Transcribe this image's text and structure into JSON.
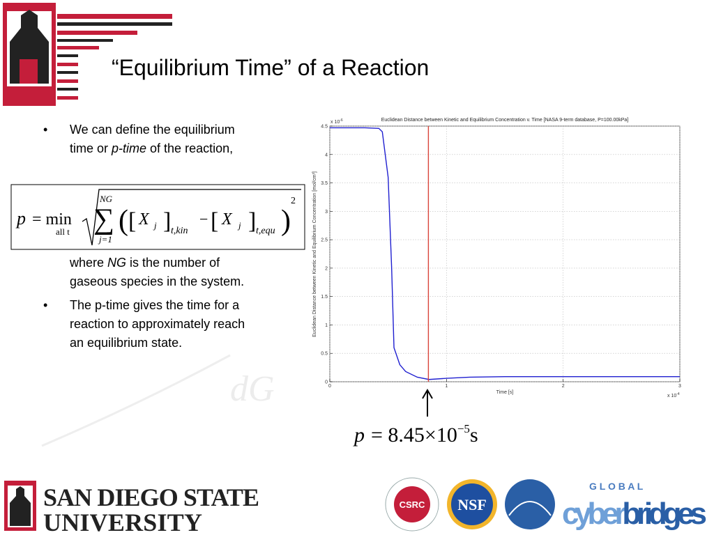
{
  "header": {
    "title": "“Equilibrium Time” of a Reaction"
  },
  "bullets": {
    "b1_line1": "We can define the equilibrium",
    "b1_line2a": "time or ",
    "b1_line2b": "p-time",
    "b1_line2c": " of the reaction,",
    "b1_line3a": "where ",
    "b1_line3b": "NG",
    "b1_line3c": " is the number of",
    "b1_line4": "gaseous species in the system.",
    "b2_line1": "The p-time gives the time for a",
    "b2_line2": "reaction to approximately reach",
    "b2_line3": "an equilibrium state."
  },
  "equation": {
    "lhs": "p",
    "eq": "= min",
    "under": "all t",
    "sum_top": "NG",
    "sum_bottom": "j=1",
    "x1": "X",
    "x1_sub": "j",
    "x1_outer": "t,kin",
    "minus": "−",
    "x2": "X",
    "x2_sub": "j",
    "x2_outer": "t,equ",
    "power": "2"
  },
  "result": {
    "lhs": "p",
    "rhs": "= 8.45×10",
    "exp": "−5",
    "unit": "s"
  },
  "footer": {
    "sdsu_line1": "SAN DIEGO STATE",
    "sdsu_line2": "UNIVERSITY",
    "csrc": "CSRC",
    "nsf": "NSF",
    "global": "G L O B A L",
    "cyber": "cyber",
    "bridges": "bridges"
  },
  "chart_data": {
    "type": "line",
    "title": "Euclidean Distance between Kinetic and Equilibrium Concentration v. Time [NASA 9-term database, P=100.00kPa]",
    "x_label": "Time [s]",
    "y_label": "Euclidean Distance between Kinetic and Equilibrium Concentration [mol/cm³]",
    "x_multiplier": {
      "base": "x 10",
      "exp": "-4"
    },
    "y_multiplier": {
      "base": "x 10",
      "exp": "-6"
    },
    "x": [
      0,
      0.3,
      0.42,
      0.45,
      0.5,
      0.53,
      0.55,
      0.6,
      0.65,
      0.75,
      0.85,
      1.0,
      1.2,
      1.5,
      2.0,
      3.0
    ],
    "series": [
      {
        "name": "distance",
        "color": "#1f1fd0",
        "values": [
          4.47,
          4.47,
          4.46,
          4.4,
          3.6,
          2.0,
          0.6,
          0.3,
          0.18,
          0.08,
          0.04,
          0.06,
          0.08,
          0.09,
          0.09,
          0.09
        ]
      }
    ],
    "reference_line": {
      "x": 0.845,
      "color": "#d9443a"
    },
    "xlim": [
      0,
      3
    ],
    "ylim": [
      0,
      4.5
    ],
    "xticks": [
      0,
      1,
      2,
      3
    ],
    "yticks": [
      0,
      0.5,
      1,
      1.5,
      2,
      2.5,
      3,
      3.5,
      4,
      4.5
    ],
    "grid": true
  }
}
